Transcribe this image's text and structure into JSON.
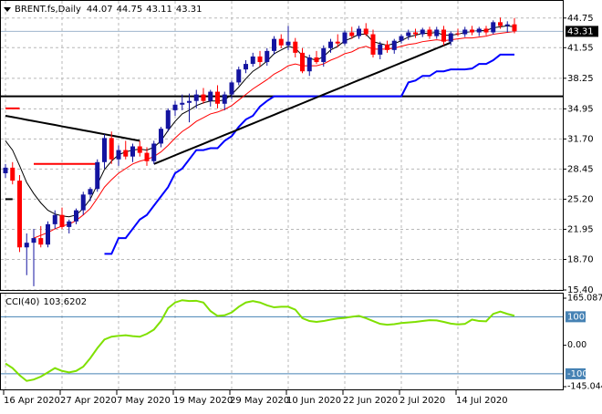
{
  "chart_data": [
    {
      "type": "candlestick",
      "title": "BRENT.fs,Daily",
      "categories": [
        "16 Apr 2020",
        null,
        null,
        null,
        null,
        null,
        null,
        null,
        "27 Apr 2020",
        null,
        null,
        null,
        null,
        null,
        null,
        null,
        "7 May 2020",
        null,
        null,
        null,
        null,
        null,
        null,
        null,
        "19 May 2020",
        null,
        null,
        null,
        null,
        null,
        null,
        null,
        "29 May 2020",
        null,
        null,
        null,
        null,
        null,
        null,
        null,
        "10 Jun 2020",
        null,
        null,
        null,
        null,
        null,
        null,
        null,
        "22 Jun 2020",
        null,
        null,
        null,
        null,
        null,
        null,
        null,
        "2 Jul 2020",
        null,
        null,
        null,
        null,
        null,
        null,
        null,
        "14 Jul 2020",
        null,
        null,
        null,
        null,
        null,
        null,
        null,
        null
      ],
      "open": [
        28.0,
        28.6,
        27.2,
        20.0,
        20.5,
        21.0,
        20.3,
        22.5,
        23.5,
        22.2,
        22.8,
        24.0,
        25.7,
        26.3,
        29.2,
        31.8,
        29.5,
        30.5,
        29.8,
        30.9,
        30.2,
        29.3,
        31.2,
        32.8,
        34.8,
        35.4,
        35.6,
        35.8,
        36.5,
        35.8,
        36.8,
        35.5,
        36.5,
        37.8,
        39.2,
        39.8,
        40.6,
        40.0,
        41.2,
        42.5,
        41.8,
        42.2,
        41.0,
        39.0,
        40.5,
        40.0,
        41.5,
        42.2,
        42.0,
        43.2,
        42.8,
        43.6,
        43.0,
        40.8,
        41.9,
        41.3,
        42.3,
        42.8,
        43.2,
        43.0,
        43.5,
        42.8,
        43.5,
        42.2,
        43.1,
        43.0,
        43.5,
        43.2,
        43.6,
        43.2,
        44.3,
        43.9,
        44.07
      ],
      "high": [
        29.0,
        29.2,
        27.8,
        21.5,
        22.0,
        22.3,
        22.8,
        24.0,
        24.3,
        23.0,
        24.2,
        26.0,
        26.5,
        29.5,
        32.2,
        32.5,
        31.0,
        31.5,
        31.2,
        31.5,
        30.8,
        31.5,
        33.0,
        35.0,
        35.8,
        36.5,
        36.6,
        37.0,
        37.2,
        37.0,
        37.5,
        36.8,
        38.0,
        39.5,
        40.2,
        41.0,
        41.2,
        41.5,
        42.8,
        43.0,
        43.9,
        42.6,
        41.5,
        40.8,
        41.2,
        41.8,
        42.5,
        43.0,
        43.4,
        43.8,
        43.9,
        44.2,
        43.5,
        42.2,
        42.3,
        42.5,
        43.0,
        43.5,
        43.6,
        43.7,
        43.8,
        43.8,
        43.9,
        43.3,
        43.6,
        43.8,
        43.9,
        43.8,
        43.9,
        44.5,
        44.8,
        44.4,
        44.75
      ],
      "low": [
        27.5,
        26.8,
        19.5,
        17.0,
        15.8,
        20.0,
        20.0,
        22.0,
        22.0,
        21.5,
        22.5,
        23.5,
        25.0,
        26.0,
        28.5,
        29.0,
        28.8,
        29.5,
        29.2,
        29.8,
        28.8,
        29.0,
        30.8,
        32.5,
        34.2,
        34.8,
        33.5,
        35.0,
        35.5,
        35.2,
        35.0,
        34.8,
        36.0,
        37.5,
        38.8,
        39.5,
        39.5,
        39.6,
        40.8,
        41.5,
        41.3,
        40.5,
        38.8,
        38.5,
        39.8,
        39.5,
        41.0,
        41.6,
        41.8,
        42.5,
        42.5,
        42.8,
        40.5,
        40.3,
        41.0,
        40.9,
        42.0,
        42.4,
        42.6,
        42.7,
        42.5,
        42.5,
        41.8,
        41.8,
        42.8,
        42.7,
        42.9,
        42.8,
        42.9,
        43.0,
        43.6,
        43.2,
        43.11
      ],
      "close": [
        28.6,
        27.2,
        20.0,
        20.5,
        21.0,
        20.3,
        22.5,
        23.5,
        22.2,
        22.8,
        24.0,
        25.7,
        26.3,
        29.2,
        31.8,
        29.5,
        30.5,
        29.8,
        30.9,
        30.2,
        29.3,
        31.2,
        32.8,
        34.8,
        35.4,
        35.6,
        35.8,
        36.5,
        35.8,
        36.8,
        35.5,
        36.5,
        37.8,
        39.2,
        39.8,
        40.6,
        40.0,
        41.2,
        42.5,
        41.8,
        42.2,
        41.0,
        39.0,
        40.5,
        40.0,
        41.5,
        42.2,
        42.0,
        43.2,
        42.8,
        43.6,
        43.0,
        40.8,
        41.9,
        41.3,
        42.3,
        42.8,
        43.2,
        43.0,
        43.5,
        42.8,
        43.5,
        42.2,
        43.1,
        43.0,
        43.5,
        43.2,
        43.6,
        43.2,
        44.3,
        43.9,
        44.07,
        43.31
      ],
      "up_color": "#1414a0",
      "down_color": "#ff0000",
      "price_line_color": "#9fb6cd",
      "ylim": [
        15.4,
        46.5
      ],
      "yticks": [
        44.75,
        41.55,
        38.25,
        34.95,
        {
          "value": 31.7,
          "label": "31.70"
        },
        28.45,
        {
          "value": 25.2,
          "label": "25.20"
        },
        21.95,
        {
          "value": 18.7,
          "label": "18.70"
        },
        {
          "value": 15.4,
          "label": "15.40"
        }
      ],
      "grid": true,
      "hlines": [
        {
          "value": 36.3,
          "color": "#000000"
        }
      ],
      "overlays": [
        {
          "color": "#ff0000",
          "width": 1,
          "values": [
            null,
            null,
            null,
            null,
            21.0,
            21.3,
            21.6,
            22.0,
            22.3,
            22.5,
            22.9,
            23.5,
            24.2,
            25.3,
            26.5,
            27.3,
            28.0,
            28.5,
            29.0,
            29.3,
            29.5,
            29.8,
            30.3,
            31.0,
            31.8,
            32.5,
            33.0,
            33.6,
            34.0,
            34.4,
            34.6,
            34.9,
            35.3,
            35.9,
            36.5,
            37.1,
            37.6,
            38.1,
            38.7,
            39.1,
            39.6,
            39.8,
            39.6,
            39.6,
            39.6,
            39.8,
            40.2,
            40.5,
            40.9,
            41.1,
            41.5,
            41.7,
            41.4,
            41.4,
            41.4,
            41.5,
            41.7,
            41.9,
            42.0,
            42.2,
            42.3,
            42.4,
            42.3,
            42.4,
            42.5,
            42.6,
            42.6,
            42.7,
            42.8,
            43.0,
            43.1,
            43.2,
            43.3
          ]
        },
        {
          "color": "#000000",
          "width": 1,
          "values": [
            31.5,
            30.5,
            28.8,
            27.0,
            25.8,
            24.8,
            24.0,
            23.6,
            23.4,
            23.3,
            23.5,
            24.2,
            25.2,
            26.8,
            28.4,
            29.3,
            30.0,
            30.3,
            30.5,
            30.6,
            30.5,
            30.8,
            31.5,
            32.6,
            33.6,
            34.4,
            34.8,
            35.3,
            35.6,
            35.8,
            35.8,
            35.9,
            36.5,
            37.3,
            38.2,
            39.0,
            39.5,
            40.1,
            40.9,
            41.3,
            41.7,
            41.5,
            40.7,
            40.4,
            40.2,
            40.6,
            41.3,
            41.7,
            42.3,
            42.6,
            43.0,
            43.0,
            42.2,
            42.0,
            41.8,
            42.0,
            42.3,
            42.7,
            42.9,
            43.1,
            43.1,
            43.2,
            42.9,
            42.9,
            43.0,
            43.2,
            43.3,
            43.4,
            43.4,
            43.7,
            43.8,
            43.9,
            43.8
          ]
        },
        {
          "color": "#0000ff",
          "width": 2,
          "values": [
            null,
            null,
            null,
            null,
            null,
            null,
            null,
            null,
            null,
            null,
            null,
            null,
            null,
            null,
            19.3,
            19.3,
            21.0,
            21.0,
            22.0,
            23.0,
            23.5,
            24.5,
            25.5,
            26.5,
            28.0,
            28.5,
            29.5,
            30.5,
            30.5,
            30.7,
            30.7,
            31.5,
            32.0,
            33.0,
            33.8,
            34.2,
            35.2,
            35.8,
            36.3,
            36.3,
            36.3,
            36.3,
            36.3,
            36.3,
            36.3,
            36.3,
            36.3,
            36.3,
            36.3,
            36.3,
            36.3,
            36.3,
            36.3,
            36.3,
            36.3,
            36.3,
            36.3,
            37.8,
            38.0,
            38.5,
            38.5,
            39.0,
            39.0,
            39.2,
            39.2,
            39.2,
            39.3,
            39.8,
            39.8,
            40.2,
            40.8,
            40.8,
            40.8
          ]
        },
        {
          "color": "#ff0000",
          "width": 2,
          "values": [
            35.0,
            35.0,
            35.0,
            null,
            29.0,
            29.0,
            29.0,
            29.0,
            29.0,
            29.0,
            29.0,
            29.0,
            29.0,
            29.0,
            null,
            null,
            null,
            null,
            null,
            null,
            null,
            null,
            null,
            null,
            null,
            null,
            null,
            null,
            null,
            null,
            null,
            null,
            null,
            null,
            null,
            null,
            null,
            null,
            null,
            null,
            null,
            null,
            null,
            null,
            null,
            null,
            null,
            null,
            null,
            null,
            null,
            null,
            null,
            null,
            null,
            null,
            null,
            null,
            null,
            null,
            null,
            null,
            null,
            null,
            null,
            null,
            null,
            null,
            null,
            null,
            null,
            null,
            null
          ]
        },
        {
          "color": "#000000",
          "width": 2,
          "values": [
            25.2,
            25.2,
            null,
            null,
            null,
            null,
            null,
            null,
            null,
            null,
            null,
            null,
            null,
            null,
            null,
            null,
            null,
            null,
            null,
            null,
            null,
            null,
            null,
            null,
            null,
            null,
            null,
            null,
            null,
            null,
            null,
            null,
            null,
            null,
            null,
            null,
            null,
            null,
            null,
            null,
            null,
            null,
            null,
            null,
            null,
            null,
            null,
            null,
            null,
            null,
            null,
            null,
            null,
            null,
            null,
            null,
            null,
            null,
            null,
            null,
            null,
            null,
            null,
            null,
            null,
            null,
            null,
            null,
            null,
            null,
            null,
            null,
            null
          ]
        },
        {
          "color": "#000000",
          "width": 2,
          "values": [
            34.2,
            34.06,
            33.92,
            33.77,
            33.63,
            33.49,
            33.35,
            33.21,
            33.06,
            32.92,
            32.78,
            32.64,
            32.5,
            32.35,
            32.21,
            32.07,
            31.93,
            31.79,
            31.64,
            31.5,
            null,
            null,
            null,
            null,
            null,
            null,
            null,
            null,
            null,
            null,
            null,
            null,
            null,
            null,
            null,
            null,
            null,
            null,
            null,
            null,
            null,
            null,
            null,
            null,
            null,
            null,
            null,
            null,
            null,
            null,
            null,
            null,
            null,
            null,
            null,
            null,
            null,
            null,
            null,
            null,
            null,
            null,
            null,
            null,
            null,
            null,
            null,
            null,
            null,
            null,
            null,
            null,
            null
          ]
        },
        {
          "color": "#000000",
          "width": 2,
          "values": [
            null,
            null,
            null,
            null,
            null,
            null,
            null,
            null,
            null,
            null,
            null,
            null,
            null,
            null,
            null,
            null,
            null,
            null,
            null,
            null,
            null,
            29.0,
            29.31,
            29.62,
            29.94,
            30.25,
            30.56,
            30.87,
            31.18,
            31.5,
            31.81,
            32.12,
            32.43,
            32.74,
            33.06,
            33.37,
            33.68,
            33.99,
            34.3,
            34.62,
            34.93,
            35.24,
            35.55,
            35.86,
            36.18,
            36.49,
            36.8,
            37.11,
            37.42,
            37.74,
            38.05,
            38.36,
            38.67,
            38.98,
            39.3,
            39.61,
            39.92,
            40.23,
            40.54,
            40.86,
            41.17,
            41.48,
            41.79,
            42.1,
            null,
            null,
            null,
            null,
            null,
            null,
            null,
            null,
            null
          ]
        }
      ]
    },
    {
      "type": "line",
      "title": "CCI(40)",
      "series": [
        {
          "color": "#7fe000",
          "values": [
            -64,
            -80,
            -105,
            -125,
            -120,
            -110,
            -95,
            -80,
            -90,
            -95,
            -90,
            -75,
            -45,
            -10,
            20,
            30,
            33,
            35,
            32,
            30,
            40,
            55,
            85,
            130,
            150,
            158,
            155,
            156,
            150,
            120,
            103,
            105,
            115,
            135,
            150,
            155,
            150,
            140,
            133,
            135,
            135,
            125,
            95,
            85,
            82,
            85,
            90,
            94,
            96,
            100,
            103,
            95,
            85,
            75,
            72,
            74,
            78,
            80,
            82,
            85,
            88,
            87,
            82,
            76,
            73,
            75,
            90,
            85,
            84,
            110,
            118,
            110,
            103.6202
          ]
        }
      ],
      "ylim": [
        -145.044,
        165.0879
      ],
      "yticks": [
        165.0879,
        {
          "value": 0,
          "label": "0.00"
        },
        -145.044
      ],
      "levels": [
        100,
        -100
      ],
      "level_color": "#4682b4"
    }
  ]
}
